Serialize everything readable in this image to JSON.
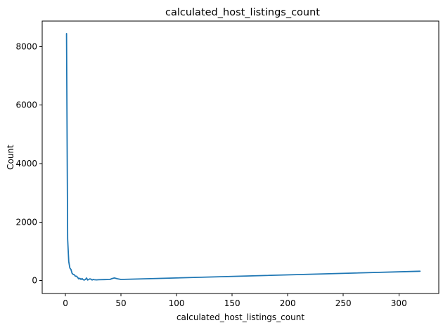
{
  "chart_data": {
    "type": "line",
    "title": "calculated_host_listings_count",
    "xlabel": "calculated_host_listings_count",
    "ylabel": "Count",
    "xlim": [
      -20.9,
      335.9
    ],
    "ylim": [
      -440,
      8870
    ],
    "xticks": [
      0,
      50,
      100,
      150,
      200,
      250,
      300
    ],
    "yticks": [
      0,
      2000,
      4000,
      6000,
      8000
    ],
    "grid": false,
    "color": "#1f77b4",
    "series": [
      {
        "x": [
          1,
          2,
          3,
          4,
          5,
          6,
          7,
          8,
          9,
          10,
          11,
          12,
          13,
          14,
          15,
          16,
          17,
          18,
          19,
          20,
          21,
          22,
          23,
          24,
          25,
          26,
          28,
          30,
          35,
          40,
          42,
          44,
          47,
          50,
          319
        ],
        "y": [
          8440,
          1420,
          650,
          430,
          380,
          250,
          210,
          200,
          150,
          150,
          110,
          60,
          80,
          40,
          70,
          30,
          20,
          40,
          90,
          20,
          40,
          60,
          50,
          20,
          40,
          30,
          25,
          30,
          35,
          40,
          70,
          90,
          60,
          40,
          320
        ]
      }
    ]
  }
}
